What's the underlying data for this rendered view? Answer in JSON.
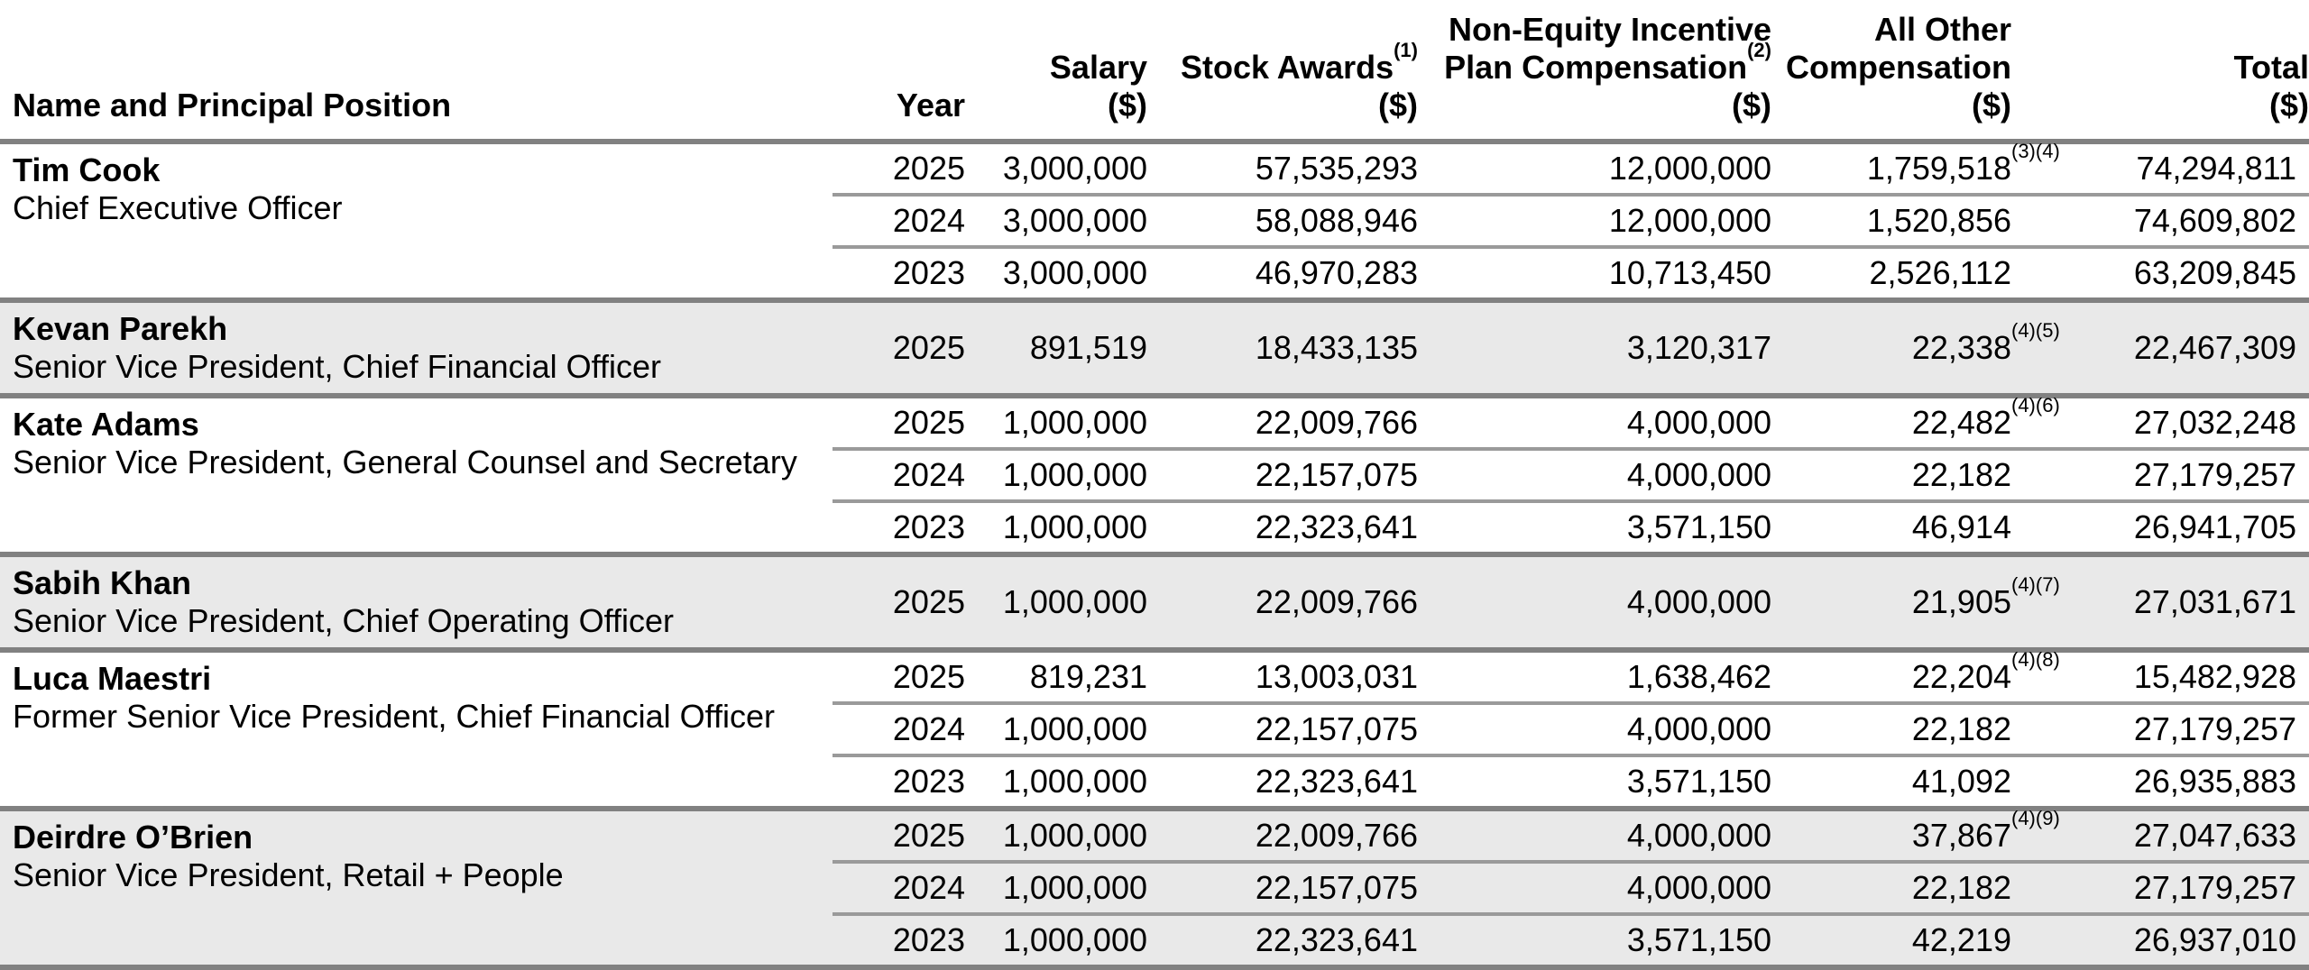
{
  "document": {
    "kind": "summary-compensation-table"
  },
  "colors": {
    "shaded_row_bg": "#e9e9e9",
    "group_border": "#818181",
    "inner_border": "#9a9a9a",
    "text": "#000000"
  },
  "table": {
    "columns": [
      {
        "id": "name",
        "align": "left",
        "lines": [
          {
            "text": "Name and Principal Position"
          }
        ]
      },
      {
        "id": "year",
        "align": "right",
        "lines": [
          {
            "text": "Year"
          }
        ]
      },
      {
        "id": "salary",
        "align": "right",
        "lines": [
          {
            "text": "Salary"
          },
          {
            "text": "($)"
          }
        ]
      },
      {
        "id": "stock",
        "align": "right",
        "lines": [
          {
            "text": "Stock Awards",
            "sup": "(1)"
          },
          {
            "text": "($)"
          }
        ]
      },
      {
        "id": "neip",
        "align": "right",
        "lines": [
          {
            "text": "Non-Equity Incentive"
          },
          {
            "text": "Plan Compensation",
            "sup": "(2)"
          },
          {
            "text": "($)"
          }
        ]
      },
      {
        "id": "other",
        "align": "right",
        "lines": [
          {
            "text": "All Other"
          },
          {
            "text": "Compensation"
          },
          {
            "text": "($)"
          }
        ]
      },
      {
        "id": "total",
        "align": "right",
        "lines": [
          {
            "text": "Total"
          },
          {
            "text": "($)"
          }
        ]
      }
    ],
    "groups": [
      {
        "name": "Tim Cook",
        "title": "Chief Executive Officer",
        "shaded": false,
        "rows": [
          {
            "year": "2025",
            "salary": "3,000,000",
            "stock": "57,535,293",
            "neip": "12,000,000",
            "other": "1,759,518",
            "other_sup": "(3)(4)",
            "total": "74,294,811"
          },
          {
            "year": "2024",
            "salary": "3,000,000",
            "stock": "58,088,946",
            "neip": "12,000,000",
            "other": "1,520,856",
            "other_sup": "",
            "total": "74,609,802"
          },
          {
            "year": "2023",
            "salary": "3,000,000",
            "stock": "46,970,283",
            "neip": "10,713,450",
            "other": "2,526,112",
            "other_sup": "",
            "total": "63,209,845"
          }
        ]
      },
      {
        "name": "Kevan Parekh",
        "title": "Senior Vice President, Chief Financial Officer",
        "shaded": true,
        "rows": [
          {
            "year": "2025",
            "salary": "891,519",
            "stock": "18,433,135",
            "neip": "3,120,317",
            "other": "22,338",
            "other_sup": "(4)(5)",
            "total": "22,467,309"
          }
        ]
      },
      {
        "name": "Kate Adams",
        "title": "Senior Vice President, General Counsel and Secretary",
        "shaded": false,
        "rows": [
          {
            "year": "2025",
            "salary": "1,000,000",
            "stock": "22,009,766",
            "neip": "4,000,000",
            "other": "22,482",
            "other_sup": "(4)(6)",
            "total": "27,032,248"
          },
          {
            "year": "2024",
            "salary": "1,000,000",
            "stock": "22,157,075",
            "neip": "4,000,000",
            "other": "22,182",
            "other_sup": "",
            "total": "27,179,257"
          },
          {
            "year": "2023",
            "salary": "1,000,000",
            "stock": "22,323,641",
            "neip": "3,571,150",
            "other": "46,914",
            "other_sup": "",
            "total": "26,941,705"
          }
        ]
      },
      {
        "name": "Sabih Khan",
        "title": "Senior Vice President, Chief Operating Officer",
        "shaded": true,
        "rows": [
          {
            "year": "2025",
            "salary": "1,000,000",
            "stock": "22,009,766",
            "neip": "4,000,000",
            "other": "21,905",
            "other_sup": "(4)(7)",
            "total": "27,031,671"
          }
        ]
      },
      {
        "name": "Luca Maestri",
        "title": "Former Senior Vice President, Chief Financial Officer",
        "shaded": false,
        "rows": [
          {
            "year": "2025",
            "salary": "819,231",
            "stock": "13,003,031",
            "neip": "1,638,462",
            "other": "22,204",
            "other_sup": "(4)(8)",
            "total": "15,482,928"
          },
          {
            "year": "2024",
            "salary": "1,000,000",
            "stock": "22,157,075",
            "neip": "4,000,000",
            "other": "22,182",
            "other_sup": "",
            "total": "27,179,257"
          },
          {
            "year": "2023",
            "salary": "1,000,000",
            "stock": "22,323,641",
            "neip": "3,571,150",
            "other": "41,092",
            "other_sup": "",
            "total": "26,935,883"
          }
        ]
      },
      {
        "name": "Deirdre O’Brien",
        "title": "Senior Vice President, Retail + People",
        "shaded": true,
        "rows": [
          {
            "year": "2025",
            "salary": "1,000,000",
            "stock": "22,009,766",
            "neip": "4,000,000",
            "other": "37,867",
            "other_sup": "(4)(9)",
            "total": "27,047,633"
          },
          {
            "year": "2024",
            "salary": "1,000,000",
            "stock": "22,157,075",
            "neip": "4,000,000",
            "other": "22,182",
            "other_sup": "",
            "total": "27,179,257"
          },
          {
            "year": "2023",
            "salary": "1,000,000",
            "stock": "22,323,641",
            "neip": "3,571,150",
            "other": "42,219",
            "other_sup": "",
            "total": "26,937,010"
          }
        ]
      }
    ]
  }
}
